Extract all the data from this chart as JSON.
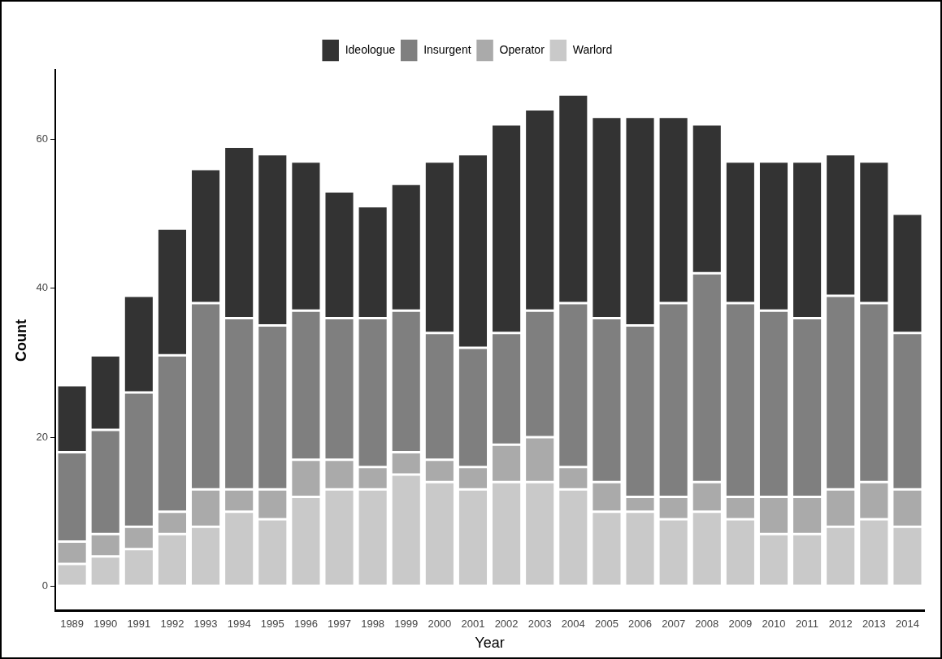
{
  "chart_data": {
    "type": "bar",
    "stacked": true,
    "xlabel": "Year",
    "ylabel": "Count",
    "categories": [
      "1989",
      "1990",
      "1991",
      "1992",
      "1993",
      "1994",
      "1995",
      "1996",
      "1997",
      "1998",
      "1999",
      "2000",
      "2001",
      "2002",
      "2003",
      "2004",
      "2005",
      "2006",
      "2007",
      "2008",
      "2009",
      "2010",
      "2011",
      "2012",
      "2013",
      "2014"
    ],
    "series": [
      {
        "name": "Warlord",
        "color": "#c9c9c9",
        "values": [
          3,
          4,
          5,
          7,
          8,
          10,
          9,
          12,
          13,
          13,
          15,
          14,
          13,
          14,
          14,
          13,
          10,
          10,
          9,
          10,
          9,
          7,
          7,
          8,
          9,
          8
        ]
      },
      {
        "name": "Operator",
        "color": "#aaaaaa",
        "values": [
          3,
          3,
          3,
          3,
          5,
          3,
          4,
          5,
          4,
          3,
          3,
          3,
          3,
          5,
          6,
          3,
          4,
          2,
          3,
          4,
          3,
          5,
          5,
          5,
          5,
          5
        ]
      },
      {
        "name": "Insurgent",
        "color": "#7f7f7f",
        "values": [
          12,
          14,
          18,
          21,
          25,
          23,
          22,
          20,
          19,
          20,
          19,
          17,
          16,
          15,
          17,
          22,
          22,
          23,
          26,
          28,
          26,
          25,
          24,
          26,
          24,
          21
        ]
      },
      {
        "name": "Ideologue",
        "color": "#333333",
        "values": [
          9,
          10,
          13,
          17,
          18,
          23,
          23,
          20,
          17,
          15,
          17,
          23,
          26,
          28,
          27,
          28,
          27,
          28,
          25,
          20,
          19,
          20,
          21,
          19,
          19,
          16
        ]
      }
    ],
    "ylim": [
      -3.3,
      69.3
    ],
    "yticks": [
      0,
      20,
      40,
      60
    ],
    "grid": false,
    "legend": "top"
  }
}
